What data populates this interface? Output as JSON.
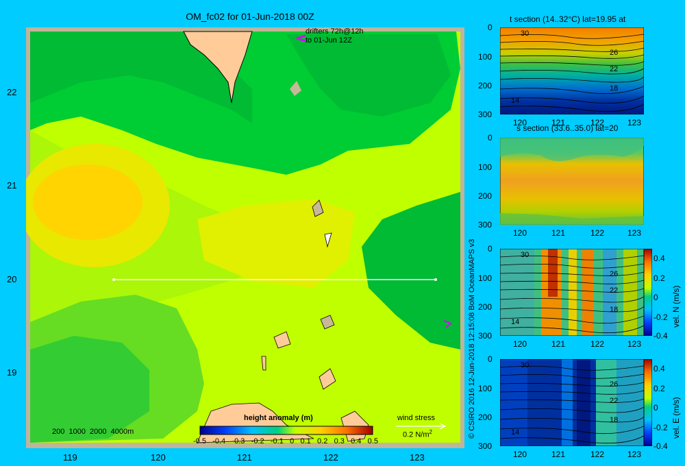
{
  "title": "OM_fc02 for 01-Jun-2018 00Z",
  "map": {
    "lon_ticks": [
      "119",
      "120",
      "121",
      "122",
      "123"
    ],
    "lat_ticks": [
      "22",
      "21",
      "20",
      "19"
    ],
    "drifters_line1": "drifters 72h@12h",
    "drifters_line2": "to 01-Jun 12Z",
    "depth_legend": "200  1000  2000  4000m",
    "wind_label": "wind stress",
    "wind_scale": "0.2 N/m",
    "wind_scale_sup": "2",
    "colorbar_title": "height anomaly (m)",
    "colorbar_ticks": [
      "-0.5",
      "-0.4",
      "-0.3",
      "-0.2",
      "-0.1",
      "0",
      "0.1",
      "0.2",
      "0.3",
      "0.4",
      "0.5"
    ],
    "colors": {
      "land": "#ffcc99",
      "shelf": "#c8b89a",
      "frame": "#c0b49a"
    }
  },
  "panels": {
    "t": {
      "title": "t section (14..32°C) lat=19.95 at",
      "contours": [
        "30",
        "26",
        "22",
        "18",
        "14"
      ]
    },
    "s": {
      "title": "s section (33.6..35.0) lat=20"
    },
    "n": {
      "contours": [
        "30",
        "26",
        "22",
        "18",
        "14"
      ],
      "cbar_label": "vel. N (m/s)",
      "cbar_ticks": [
        "0.4",
        "0.2",
        "0",
        "-0.2",
        "-0.4"
      ]
    },
    "e": {
      "contours": [
        "30",
        "26",
        "22",
        "18",
        "14"
      ],
      "cbar_label": "vel. E (m/s)",
      "cbar_ticks": [
        "0.4",
        "0.2",
        "0",
        "-0.2",
        "-0.4"
      ]
    },
    "depth_ticks": [
      "0",
      "100",
      "200",
      "300"
    ],
    "lon_ticks": [
      "120",
      "121",
      "122",
      "123"
    ]
  },
  "copyright": "© CSIRO 2016   12-Jun-2018 12:15:08 BoM OceanMAPS v3"
}
